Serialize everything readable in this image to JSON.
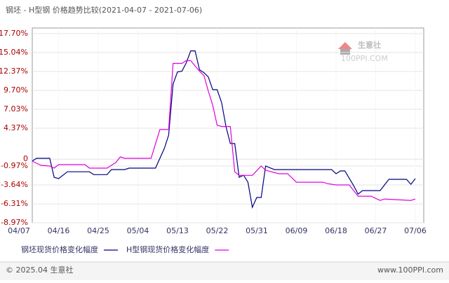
{
  "chart_data": {
    "type": "line",
    "title": "钢坯 - H型钢 价格趋势比较(2021-04-07 - 2021-07-06)",
    "xlim": [
      "04/07",
      "07/06"
    ],
    "xticks": [
      "04/07",
      "04/16",
      "04/25",
      "05/04",
      "05/13",
      "05/22",
      "05/31",
      "06/09",
      "06/18",
      "06/27",
      "07/06"
    ],
    "ylim": [
      -8.97,
      17.7
    ],
    "yticks": [
      {
        "value": -8.97,
        "label": "-8.97%"
      },
      {
        "value": -6.31,
        "label": "-6.31%"
      },
      {
        "value": -3.64,
        "label": "-3.64%"
      },
      {
        "value": -0.97,
        "label": "-0.97%"
      },
      0,
      {
        "value": 4.37,
        "label": "4.37%"
      },
      {
        "value": 7.03,
        "label": "7.03%"
      },
      {
        "value": 9.7,
        "label": "9.70%"
      },
      {
        "value": 12.37,
        "label": "12.37%"
      },
      {
        "value": 15.04,
        "label": "15.04%"
      },
      {
        "value": 17.7,
        "label": "17.70%"
      }
    ],
    "grid": true,
    "series": [
      {
        "name": "钢坯现货价格变化幅度",
        "color": "#000080",
        "x": [
          "04/10",
          "04/11",
          "04/14",
          "04/15",
          "04/16",
          "04/18",
          "04/23",
          "04/24",
          "04/27",
          "04/28",
          "05/01",
          "05/02",
          "05/08",
          "05/10",
          "05/11",
          "05/12",
          "05/13",
          "05/14",
          "05/15",
          "05/16",
          "05/17",
          "05/18",
          "05/19",
          "05/20",
          "05/21",
          "05/22",
          "05/23",
          "05/24",
          "05/25",
          "05/26",
          "05/27",
          "05/28",
          "05/29",
          "05/30",
          "05/31",
          "06/01",
          "06/02",
          "06/04",
          "06/17",
          "06/18",
          "06/19",
          "06/20",
          "06/22",
          "06/23",
          "06/24",
          "06/28",
          "06/30",
          "07/04",
          "07/05",
          "07/06"
        ],
        "values": [
          -0.28,
          0.12,
          0.12,
          -2.56,
          -2.75,
          -1.78,
          -1.78,
          -2.18,
          -2.18,
          -1.47,
          -1.47,
          -1.27,
          -1.27,
          1.5,
          3.39,
          10.6,
          12.3,
          12.4,
          13.6,
          15.27,
          15.27,
          12.6,
          12.2,
          11.6,
          9.8,
          9.8,
          8.0,
          4.6,
          2.2,
          2.2,
          -2.56,
          -2.26,
          -3.25,
          -6.8,
          -5.4,
          -5.4,
          -0.97,
          -1.47,
          -1.47,
          -2.06,
          -1.66,
          -1.66,
          -3.74,
          -4.93,
          -4.44,
          -4.44,
          -2.85,
          -2.85,
          -3.55,
          -2.75
        ]
      },
      {
        "name": "H型钢现货价格变化幅度",
        "color": "#e000e0",
        "x": [
          "04/10",
          "04/12",
          "04/14",
          "04/15",
          "04/16",
          "04/22",
          "04/23",
          "04/27",
          "04/28",
          "04/29",
          "04/30",
          "05/01",
          "05/07",
          "05/09",
          "05/11",
          "05/12",
          "05/14",
          "05/15",
          "05/16",
          "05/18",
          "05/19",
          "05/20",
          "05/21",
          "05/22",
          "05/23",
          "05/25",
          "05/26",
          "05/27",
          "05/30",
          "06/01",
          "06/02",
          "06/05",
          "06/07",
          "06/09",
          "06/15",
          "06/16",
          "06/18",
          "06/21",
          "06/23",
          "06/26",
          "06/27",
          "06/28",
          "06/29",
          "07/05",
          "07/06"
        ],
        "values": [
          -0.28,
          -0.87,
          -0.97,
          -1.27,
          -0.77,
          -0.77,
          -1.27,
          -1.27,
          -0.87,
          -0.48,
          0.32,
          0.12,
          0.12,
          4.18,
          4.18,
          13.5,
          13.5,
          13.9,
          13.9,
          12.4,
          11.8,
          9.6,
          7.6,
          4.8,
          4.6,
          4.6,
          -1.78,
          -2.28,
          -2.28,
          -0.97,
          -1.56,
          -2.06,
          -2.06,
          -3.25,
          -3.25,
          -3.45,
          -3.64,
          -3.64,
          -5.23,
          -5.23,
          -5.53,
          -5.82,
          -5.62,
          -5.82,
          -5.62
        ]
      }
    ],
    "watermark": {
      "name": "生意社",
      "site": "100PPI.COM"
    },
    "footer": {
      "left": "© 2025.04 生意社",
      "right": "www.100PPI.com"
    }
  }
}
